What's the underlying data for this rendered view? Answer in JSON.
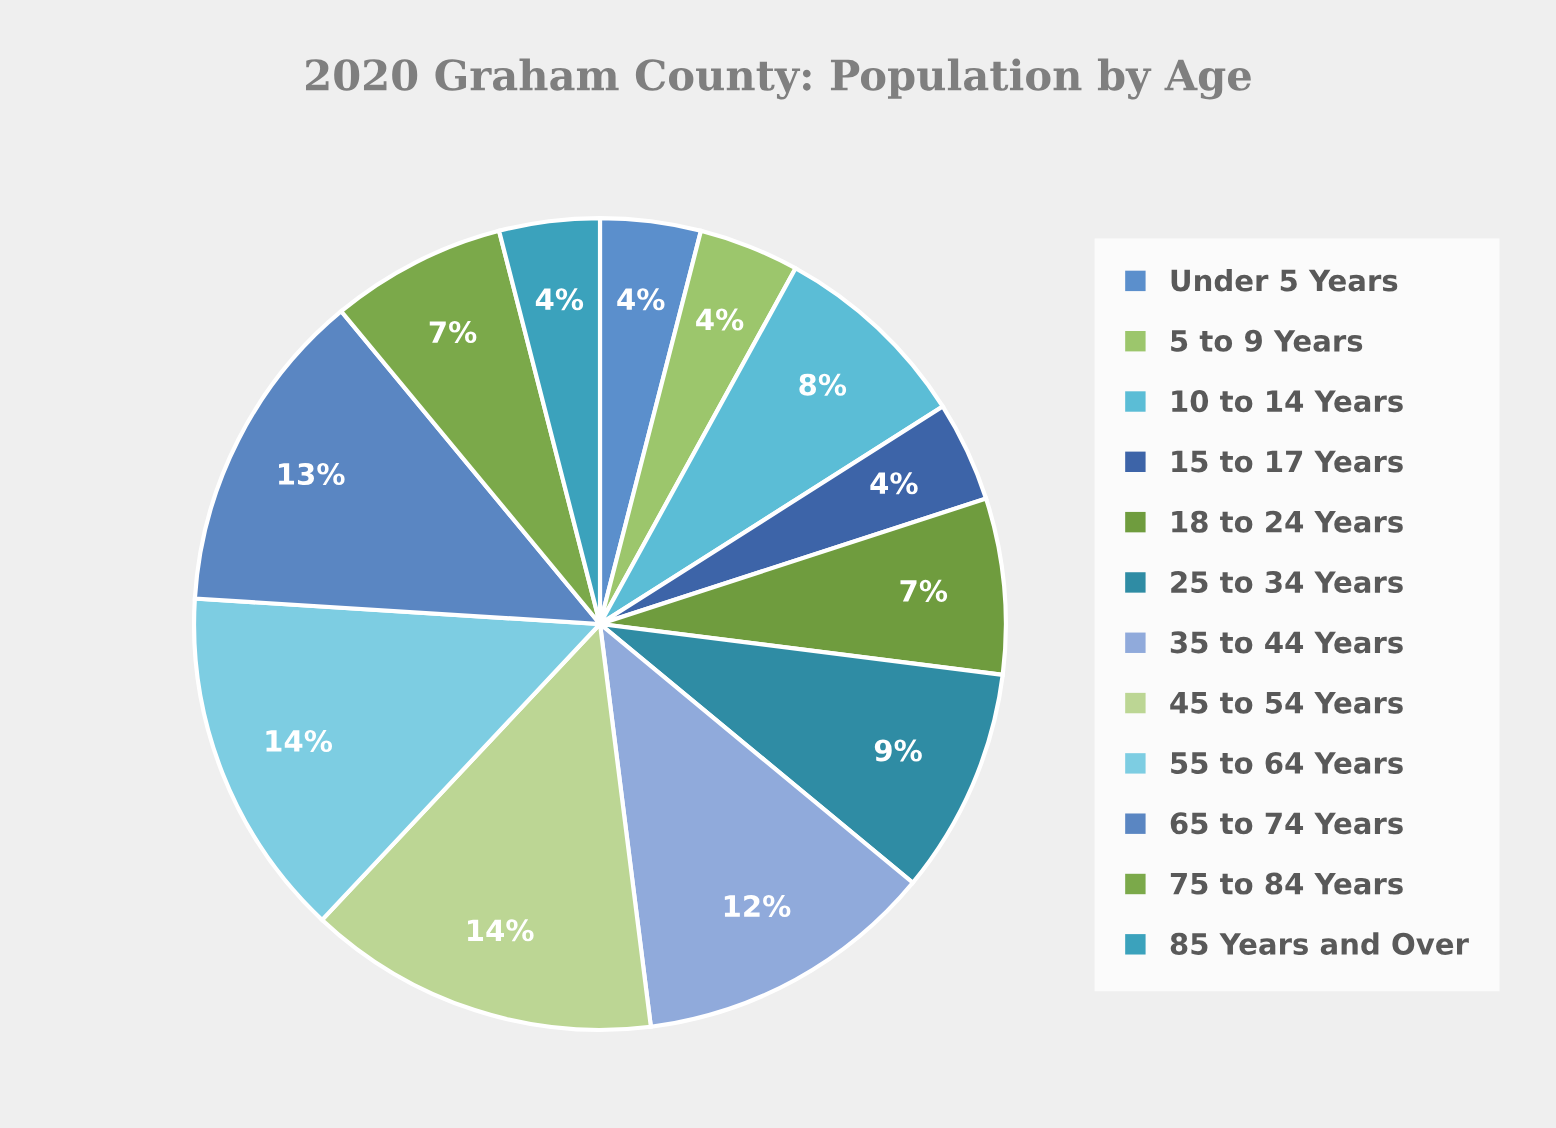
{
  "chart_data": {
    "type": "pie",
    "title": "2020 Graham County: Population by Age",
    "categories": [
      "Under 5 Years",
      "5 to 9 Years",
      "10 to 14 Years",
      "15 to 17 Years",
      "18 to 24 Years",
      "25 to 34 Years",
      "35 to 44 Years",
      "45 to 54 Years",
      "55 to 64 Years",
      "65 to 74 Years",
      "75 to 84 Years",
      "85 Years and Over"
    ],
    "values": [
      4,
      4,
      8,
      4,
      7,
      9,
      12,
      14,
      14,
      13,
      7,
      4
    ],
    "colors": [
      "#5b8fcc",
      "#9cc66c",
      "#5bbdd6",
      "#3d64a8",
      "#6f9c3e",
      "#2f8ca4",
      "#90aadb",
      "#bcd694",
      "#7dcde2",
      "#5a86c2",
      "#7ba94a",
      "#3ba2bc"
    ],
    "value_labels": [
      "4%",
      "4%",
      "8%",
      "4%",
      "7%",
      "9%",
      "12%",
      "14%",
      "14%",
      "13%",
      "7%",
      "4%"
    ],
    "legend": "right"
  }
}
